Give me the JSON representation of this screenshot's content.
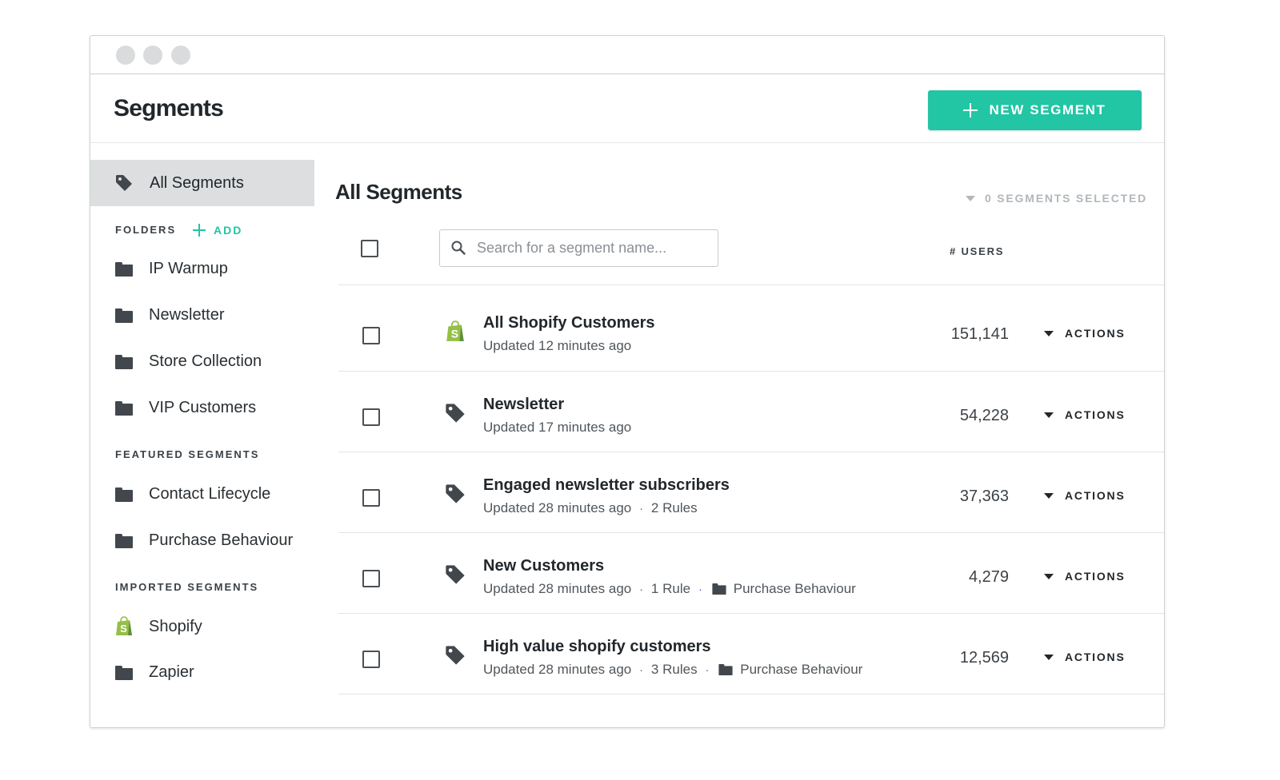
{
  "header": {
    "title": "Segments",
    "new_segment_label": "NEW SEGMENT"
  },
  "sidebar": {
    "active_item": "All Segments",
    "folders_heading": "FOLDERS",
    "add_label": "ADD",
    "folders": [
      "IP Warmup",
      "Newsletter",
      "Store Collection",
      "VIP Customers"
    ],
    "featured_heading": "FEATURED SEGMENTS",
    "featured": [
      "Contact Lifecycle",
      "Purchase Behaviour"
    ],
    "imported_heading": "IMPORTED SEGMENTS",
    "imported": [
      "Shopify",
      "Zapier"
    ]
  },
  "main": {
    "title": "All Segments",
    "selected_count": "0 SEGMENTS SELECTED",
    "search_placeholder": "Search for a segment name...",
    "users_column": "# USERS",
    "actions_label": "ACTIONS",
    "rows": [
      {
        "name": "All Shopify Customers",
        "updated": "Updated 12 minutes ago",
        "rules": "",
        "folder": "",
        "users": "151,141",
        "icon": "shopify-icon"
      },
      {
        "name": "Newsletter",
        "updated": "Updated 17 minutes ago",
        "rules": "",
        "folder": "",
        "users": "54,228",
        "icon": "tag-icon"
      },
      {
        "name": "Engaged newsletter subscribers",
        "updated": "Updated 28 minutes ago",
        "rules": "2 Rules",
        "folder": "",
        "users": "37,363",
        "icon": "tag-icon"
      },
      {
        "name": "New Customers",
        "updated": "Updated 28 minutes ago",
        "rules": "1 Rule",
        "folder": "Purchase Behaviour",
        "users": "4,279",
        "icon": "tag-icon"
      },
      {
        "name": "High value shopify customers",
        "updated": "Updated 28 minutes ago",
        "rules": "3 Rules",
        "folder": "Purchase Behaviour",
        "users": "12,569",
        "icon": "tag-icon"
      }
    ]
  },
  "colors": {
    "accent": "#22c5a4",
    "shopify_green": "#95bf47",
    "icon_dark": "#41474c"
  }
}
